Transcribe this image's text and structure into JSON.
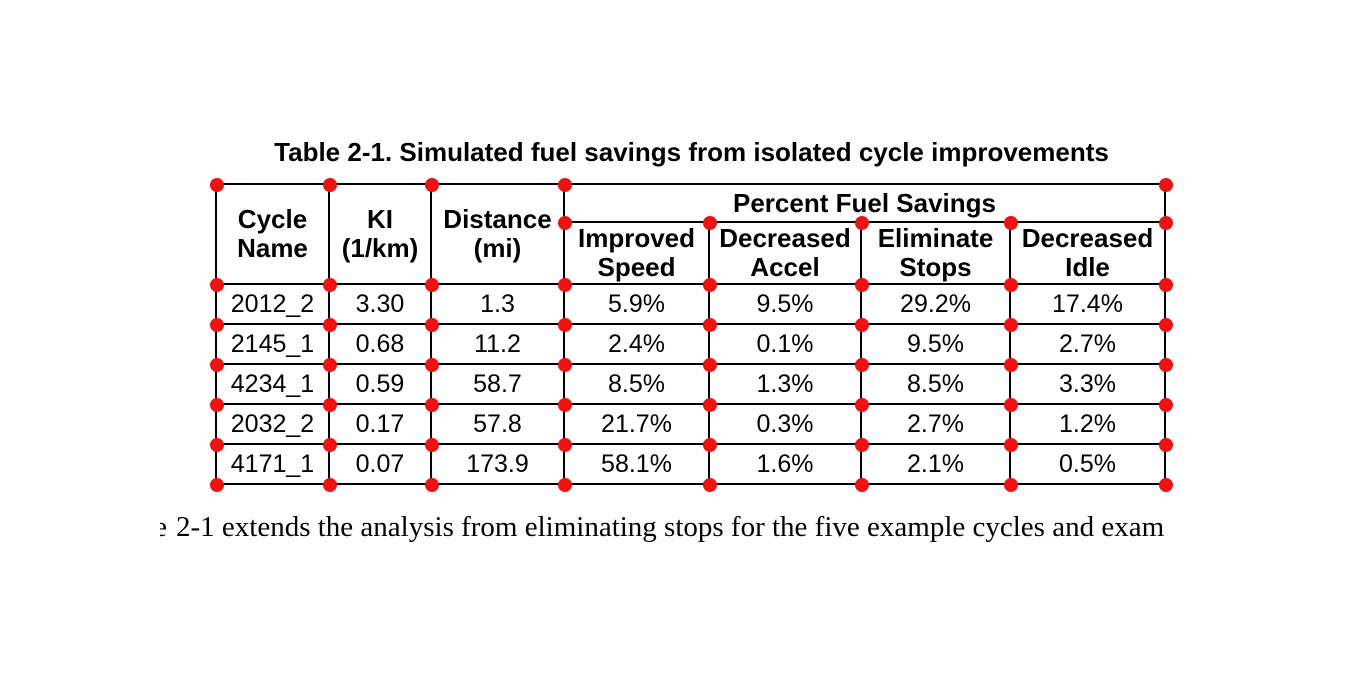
{
  "title": "Table 2-1. Simulated fuel savings from isolated cycle improvements",
  "table": {
    "columns": [
      "Cycle\nName",
      "KI\n(1/km)",
      "Distance\n(mi)"
    ],
    "group_header": "Percent Fuel Savings",
    "sub_columns": [
      "Improved\nSpeed",
      "Decreased\nAccel",
      "Eliminate\nStops",
      "Decreased\nIdle"
    ],
    "rows": [
      [
        "2012_2",
        "3.30",
        "1.3",
        "5.9%",
        "9.5%",
        "29.2%",
        "17.4%"
      ],
      [
        "2145_1",
        "0.68",
        "11.2",
        "2.4%",
        "0.1%",
        "9.5%",
        "2.7%"
      ],
      [
        "4234_1",
        "0.59",
        "58.7",
        "8.5%",
        "1.3%",
        "8.5%",
        "3.3%"
      ],
      [
        "2032_2",
        "0.17",
        "57.8",
        "21.7%",
        "0.3%",
        "2.7%",
        "1.2%"
      ],
      [
        "4171_1",
        "0.07",
        "173.9",
        "58.1%",
        "1.6%",
        "2.1%",
        "0.5%"
      ]
    ]
  },
  "body_text": {
    "clipped_char": "e",
    "line": "2-1 extends the analysis from eliminating stops for the five example cycles and exam"
  },
  "colors": {
    "background": "#ffffff",
    "border": "#000000",
    "text": "#000000",
    "handle": "#ee1212"
  }
}
